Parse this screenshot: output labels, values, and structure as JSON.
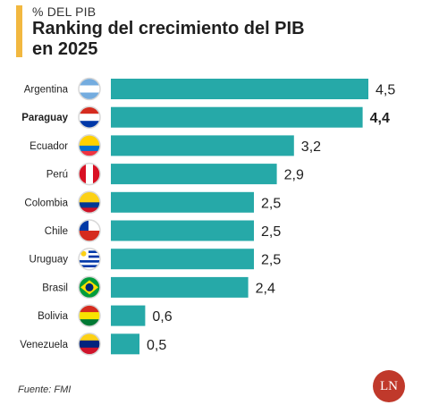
{
  "header": {
    "supertitle": "% DEL PIB",
    "title": "Ranking del crecimiento del PIB en 2025"
  },
  "chart_data": {
    "type": "bar",
    "orientation": "horizontal",
    "title": "Ranking del crecimiento del PIB en 2025",
    "categories": [
      "Argentina",
      "Paraguay",
      "Ecuador",
      "Perú",
      "Colombia",
      "Chile",
      "Uruguay",
      "Brasil",
      "Bolivia",
      "Venezuela"
    ],
    "values": [
      4.5,
      4.4,
      3.2,
      2.9,
      2.5,
      2.5,
      2.5,
      2.4,
      0.6,
      0.5
    ],
    "value_labels": [
      "4,5",
      "4,4",
      "3,2",
      "2,9",
      "2,5",
      "2,5",
      "2,5",
      "2,4",
      "0,6",
      "0,5"
    ],
    "highlight": "Paraguay",
    "bar_color": "#26a9a8",
    "xlim": [
      0,
      4.5
    ],
    "grid": false,
    "legend": "none"
  },
  "footer": {
    "source": "Fuente: FMI",
    "logo": "LN"
  }
}
